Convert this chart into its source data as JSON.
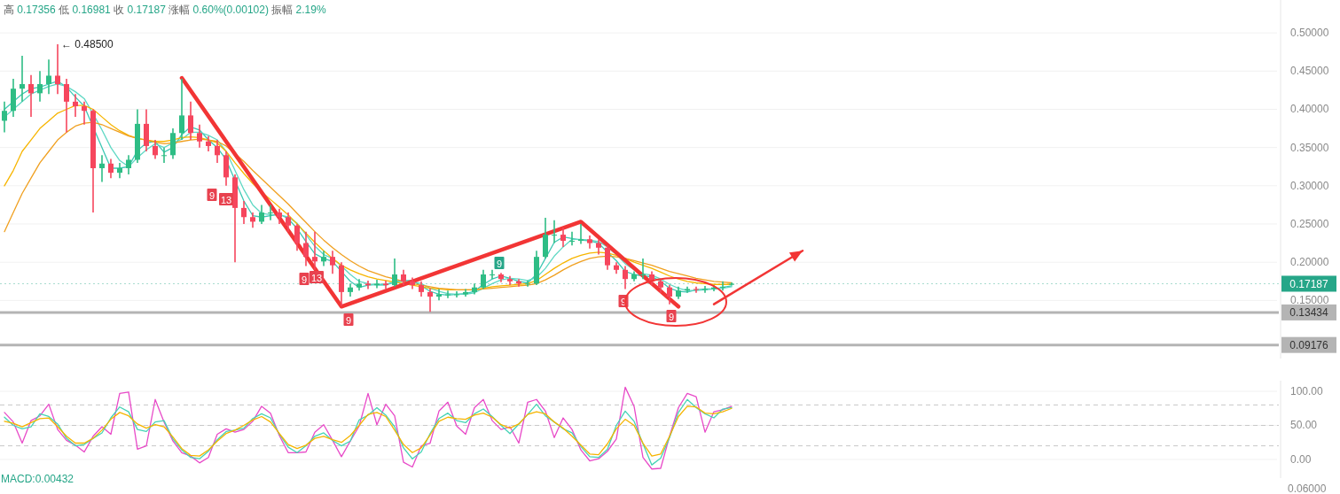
{
  "chart_data": [
    {
      "type": "candlestick",
      "title": "高 0.17356 低 0.16981 收 0.17187 涨幅 0.60%(0.00102) 振幅 2.19%",
      "categories": [
        null,
        null,
        null,
        null,
        null,
        null,
        null,
        null,
        null,
        null,
        null,
        null,
        null,
        null,
        null,
        null,
        null,
        null,
        null,
        null,
        null,
        null,
        null,
        null,
        null,
        null,
        null,
        null,
        null,
        null,
        null,
        null,
        null,
        null,
        null,
        null,
        null,
        null,
        null,
        null,
        null,
        null,
        null,
        null,
        null,
        null,
        null,
        null,
        null,
        null,
        null,
        null,
        null,
        null,
        null,
        null,
        null,
        null,
        null,
        null,
        null,
        null,
        null,
        null,
        null,
        null,
        null,
        null,
        null,
        null,
        null,
        null,
        null,
        null,
        null,
        null,
        null,
        null,
        null,
        null,
        null,
        null,
        null,
        null,
        null,
        null,
        null,
        null,
        null,
        null,
        null
      ],
      "ohlc": [
        [
          0.385,
          0.41,
          0.37,
          0.398
        ],
        [
          0.398,
          0.44,
          0.39,
          0.427
        ],
        [
          0.427,
          0.47,
          0.41,
          0.433
        ],
        [
          0.433,
          0.445,
          0.39,
          0.421
        ],
        [
          0.421,
          0.45,
          0.41,
          0.433
        ],
        [
          0.433,
          0.465,
          0.42,
          0.444
        ],
        [
          0.444,
          0.485,
          0.42,
          0.433
        ],
        [
          0.433,
          0.44,
          0.37,
          0.41
        ],
        [
          0.41,
          0.42,
          0.39,
          0.404
        ],
        [
          0.404,
          0.41,
          0.38,
          0.398
        ],
        [
          0.398,
          0.4,
          0.265,
          0.323
        ],
        [
          0.323,
          0.34,
          0.305,
          0.329
        ],
        [
          0.329,
          0.335,
          0.31,
          0.317
        ],
        [
          0.317,
          0.33,
          0.31,
          0.323
        ],
        [
          0.323,
          0.34,
          0.315,
          0.334
        ],
        [
          0.334,
          0.4,
          0.33,
          0.381
        ],
        [
          0.381,
          0.4,
          0.345,
          0.352
        ],
        [
          0.352,
          0.36,
          0.335,
          0.34
        ],
        [
          0.34,
          0.35,
          0.33,
          0.34
        ],
        [
          0.34,
          0.375,
          0.335,
          0.369
        ],
        [
          0.369,
          0.44,
          0.36,
          0.392
        ],
        [
          0.392,
          0.41,
          0.36,
          0.369
        ],
        [
          0.369,
          0.38,
          0.35,
          0.358
        ],
        [
          0.358,
          0.365,
          0.345,
          0.352
        ],
        [
          0.352,
          0.36,
          0.33,
          0.34
        ],
        [
          0.34,
          0.345,
          0.3,
          0.311
        ],
        [
          0.311,
          0.315,
          0.2,
          0.271
        ],
        [
          0.271,
          0.28,
          0.25,
          0.259
        ],
        [
          0.259,
          0.265,
          0.245,
          0.253
        ],
        [
          0.253,
          0.275,
          0.25,
          0.265
        ],
        [
          0.265,
          0.275,
          0.255,
          0.265
        ],
        [
          0.265,
          0.27,
          0.25,
          0.259
        ],
        [
          0.259,
          0.265,
          0.24,
          0.248
        ],
        [
          0.248,
          0.25,
          0.215,
          0.225
        ],
        [
          0.225,
          0.24,
          0.195,
          0.207
        ],
        [
          0.207,
          0.24,
          0.19,
          0.201
        ],
        [
          0.201,
          0.215,
          0.195,
          0.207
        ],
        [
          0.207,
          0.215,
          0.185,
          0.196
        ],
        [
          0.196,
          0.2,
          0.143,
          0.161
        ],
        [
          0.161,
          0.172,
          0.155,
          0.167
        ],
        [
          0.167,
          0.178,
          0.163,
          0.172
        ],
        [
          0.172,
          0.176,
          0.165,
          0.17
        ],
        [
          0.17,
          0.177,
          0.166,
          0.172
        ],
        [
          0.172,
          0.176,
          0.165,
          0.17
        ],
        [
          0.17,
          0.205,
          0.168,
          0.184
        ],
        [
          0.184,
          0.19,
          0.17,
          0.175
        ],
        [
          0.175,
          0.18,
          0.165,
          0.17
        ],
        [
          0.17,
          0.175,
          0.155,
          0.161
        ],
        [
          0.161,
          0.166,
          0.135,
          0.155
        ],
        [
          0.155,
          0.165,
          0.15,
          0.158
        ],
        [
          0.158,
          0.163,
          0.153,
          0.158
        ],
        [
          0.158,
          0.162,
          0.154,
          0.158
        ],
        [
          0.158,
          0.165,
          0.155,
          0.161
        ],
        [
          0.161,
          0.172,
          0.158,
          0.167
        ],
        [
          0.167,
          0.19,
          0.165,
          0.184
        ],
        [
          0.184,
          0.19,
          0.178,
          0.184
        ],
        [
          0.184,
          0.186,
          0.174,
          0.178
        ],
        [
          0.178,
          0.182,
          0.17,
          0.175
        ],
        [
          0.175,
          0.178,
          0.168,
          0.172
        ],
        [
          0.172,
          0.176,
          0.168,
          0.172
        ],
        [
          0.172,
          0.215,
          0.17,
          0.207
        ],
        [
          0.207,
          0.258,
          0.205,
          0.236
        ],
        [
          0.236,
          0.255,
          0.225,
          0.236
        ],
        [
          0.236,
          0.245,
          0.22,
          0.228
        ],
        [
          0.228,
          0.24,
          0.222,
          0.228
        ],
        [
          0.228,
          0.25,
          0.224,
          0.23
        ],
        [
          0.23,
          0.235,
          0.218,
          0.225
        ],
        [
          0.225,
          0.23,
          0.21,
          0.219
        ],
        [
          0.219,
          0.222,
          0.19,
          0.196
        ],
        [
          0.196,
          0.2,
          0.185,
          0.19
        ],
        [
          0.19,
          0.195,
          0.165,
          0.178
        ],
        [
          0.178,
          0.188,
          0.175,
          0.184
        ],
        [
          0.184,
          0.205,
          0.178,
          0.184
        ],
        [
          0.184,
          0.188,
          0.17,
          0.175
        ],
        [
          0.175,
          0.178,
          0.16,
          0.167
        ],
        [
          0.167,
          0.17,
          0.145,
          0.155
        ],
        [
          0.155,
          0.168,
          0.152,
          0.163
        ],
        [
          0.163,
          0.168,
          0.16,
          0.165
        ],
        [
          0.165,
          0.168,
          0.16,
          0.164
        ],
        [
          0.164,
          0.169,
          0.16,
          0.165
        ],
        [
          0.165,
          0.17,
          0.162,
          0.167
        ],
        [
          0.167,
          0.175,
          0.163,
          0.168
        ],
        [
          0.1705,
          0.17356,
          0.16981,
          0.17187
        ],
        null,
        null,
        null,
        null,
        null,
        null,
        null,
        null
      ],
      "series": [
        {
          "type": "line",
          "color": "#3cc8b4",
          "values": [
            0.4,
            0.41,
            0.42,
            0.427,
            0.429,
            0.433,
            0.437,
            0.429,
            0.416,
            0.404,
            null,
            0.35,
            0.323,
            0.323,
            0.325,
            0.346,
            0.356,
            0.358,
            0.344,
            0.35,
            0.367,
            0.377,
            0.373,
            0.36,
            0.35,
            0.334,
            0.307,
            0.28,
            0.261,
            0.259,
            0.261,
            0.263,
            0.257,
            0.244,
            0.227,
            0.211,
            0.205,
            0.201,
            0.188,
            0.175,
            0.167,
            0.17,
            0.171,
            0.171,
            0.175,
            0.176,
            0.176,
            0.169,
            0.162,
            0.158,
            0.157,
            0.158,
            0.159,
            0.162,
            0.171,
            0.178,
            0.182,
            0.179,
            0.175,
            0.173,
            0.184,
            0.205,
            0.226,
            0.233,
            0.231,
            0.229,
            0.228,
            0.225,
            0.213,
            0.202,
            0.188,
            0.184,
            0.182,
            0.181,
            0.175,
            0.166,
            0.162,
            0.161,
            0.164,
            0.165,
            0.165,
            0.167,
            0.169,
            null,
            null,
            null,
            null,
            null,
            null,
            null,
            null
          ]
        },
        {
          "type": "line",
          "color": "#5fd8c4",
          "values": [
            0.39,
            0.4,
            0.41,
            0.42,
            0.425,
            0.43,
            0.433,
            0.43,
            0.423,
            0.414,
            0.394,
            0.373,
            0.35,
            0.333,
            0.325,
            0.337,
            0.347,
            0.355,
            0.35,
            0.356,
            0.361,
            0.37,
            0.37,
            0.366,
            0.36,
            0.345,
            0.32,
            0.295,
            0.275,
            0.264,
            0.262,
            0.262,
            0.259,
            0.251,
            0.236,
            0.221,
            0.21,
            0.205,
            0.195,
            0.184,
            0.175,
            0.172,
            0.17,
            0.17,
            0.174,
            0.175,
            0.175,
            0.172,
            0.166,
            0.162,
            0.159,
            0.158,
            0.158,
            0.16,
            0.166,
            0.172,
            0.177,
            0.179,
            0.178,
            0.176,
            0.18,
            0.192,
            0.208,
            0.22,
            0.23,
            0.23,
            0.229,
            0.227,
            0.22,
            0.21,
            0.198,
            0.19,
            0.185,
            0.183,
            0.178,
            0.171,
            0.166,
            0.163,
            0.163,
            0.164,
            0.165,
            0.166,
            0.168,
            null,
            null,
            null,
            null,
            null,
            null,
            null,
            null
          ]
        },
        {
          "type": "line",
          "color": "#f7b500",
          "values": [
            0.3,
            0.32,
            0.345,
            0.36,
            0.375,
            0.385,
            0.395,
            0.4,
            0.405,
            0.405,
            0.4,
            0.39,
            0.38,
            0.372,
            0.366,
            0.362,
            0.36,
            0.358,
            0.358,
            0.36,
            0.363,
            0.364,
            0.363,
            0.36,
            0.356,
            0.345,
            0.33,
            0.316,
            0.303,
            0.292,
            0.282,
            0.272,
            0.262,
            0.25,
            0.238,
            0.226,
            0.215,
            0.205,
            0.196,
            0.19,
            0.185,
            0.181,
            0.178,
            0.176,
            0.174,
            0.172,
            0.17,
            0.168,
            0.166,
            0.165,
            0.164,
            0.164,
            0.164,
            0.164,
            0.166,
            0.168,
            0.169,
            0.17,
            0.171,
            0.172,
            0.176,
            0.184,
            0.192,
            0.199,
            0.205,
            0.209,
            0.212,
            0.213,
            0.212,
            0.209,
            0.205,
            0.2,
            0.196,
            0.192,
            0.187,
            0.182,
            0.178,
            0.175,
            0.173,
            0.172,
            0.171,
            0.171,
            0.171,
            null,
            null,
            null,
            null,
            null,
            null,
            null,
            null
          ]
        },
        {
          "type": "line",
          "color": "#f0a020",
          "values": [
            0.24,
            0.265,
            0.29,
            0.31,
            0.33,
            0.345,
            0.36,
            0.37,
            0.378,
            0.382,
            0.383,
            0.38,
            0.375,
            0.37,
            0.365,
            0.362,
            0.36,
            0.357,
            0.355,
            0.356,
            0.358,
            0.36,
            0.361,
            0.36,
            0.358,
            0.352,
            0.342,
            0.332,
            0.32,
            0.309,
            0.298,
            0.287,
            0.276,
            0.264,
            0.252,
            0.24,
            0.229,
            0.219,
            0.21,
            0.202,
            0.195,
            0.189,
            0.185,
            0.181,
            0.178,
            0.175,
            0.172,
            0.17,
            0.168,
            0.166,
            0.165,
            0.164,
            0.164,
            0.164,
            0.165,
            0.166,
            0.167,
            0.168,
            0.169,
            0.17,
            0.172,
            0.177,
            0.183,
            0.19,
            0.196,
            0.201,
            0.205,
            0.207,
            0.208,
            0.207,
            0.205,
            0.202,
            0.199,
            0.196,
            0.192,
            0.188,
            0.185,
            0.182,
            0.179,
            0.177,
            0.175,
            0.174,
            0.173,
            null,
            null,
            null,
            null,
            null,
            null,
            null,
            null
          ]
        },
        {
          "type": "line",
          "color": "#f23535",
          "values": [
            null,
            null,
            null,
            null,
            null,
            null,
            null,
            null,
            null,
            null,
            null,
            null,
            null,
            null,
            null,
            null,
            null,
            null,
            null,
            null,
            0.441,
            null,
            null,
            null,
            null,
            null,
            null,
            null,
            null,
            null,
            null,
            null,
            null,
            null,
            null,
            null,
            null,
            null,
            0.142,
            null,
            null,
            null,
            null,
            null,
            null,
            null,
            null,
            null,
            null,
            null,
            null,
            null,
            null,
            null,
            null,
            null,
            null,
            null,
            null,
            null,
            null,
            null,
            null,
            null,
            null,
            0.253,
            null,
            null,
            null,
            null,
            null,
            null,
            null,
            null,
            null,
            null,
            0.142,
            null,
            null,
            null,
            null,
            null,
            null,
            null,
            null,
            null,
            null,
            null,
            null,
            null,
            null
          ]
        },
        {
          "type": "line",
          "color": "#f23535",
          "values": [
            null,
            null,
            null,
            null,
            null,
            null,
            null,
            null,
            null,
            null,
            null,
            null,
            null,
            null,
            null,
            null,
            null,
            null,
            null,
            null,
            null,
            null,
            null,
            null,
            null,
            null,
            null,
            null,
            null,
            null,
            null,
            null,
            null,
            null,
            null,
            null,
            null,
            null,
            null,
            null,
            null,
            null,
            null,
            null,
            null,
            null,
            null,
            null,
            null,
            null,
            null,
            null,
            null,
            null,
            null,
            null,
            null,
            null,
            null,
            null,
            null,
            null,
            null,
            null,
            null,
            null,
            null,
            null,
            null,
            null,
            null,
            null,
            null,
            null,
            null,
            null,
            null,
            null,
            null,
            null,
            0.145,
            null,
            null,
            null,
            null,
            null,
            null,
            null,
            null,
            null,
            0.215
          ]
        }
      ],
      "ylim": [
        0.074,
        0.543
      ],
      "yticks": [
        {
          "value": 0.15,
          "label": "0.15000"
        },
        {
          "value": 0.2,
          "label": "0.20000"
        },
        {
          "value": 0.25,
          "label": "0.25000"
        },
        {
          "value": 0.3,
          "label": "0.30000"
        },
        {
          "value": 0.35,
          "label": "0.35000"
        },
        {
          "value": 0.4,
          "label": "0.40000"
        },
        {
          "value": 0.45,
          "label": "0.45000"
        },
        {
          "value": 0.5,
          "label": "0.50000"
        }
      ],
      "ref_lines": [
        {
          "axis": "y",
          "value": 0.17187,
          "label": "0.17187",
          "color": "#26a688",
          "line_style": "dotted"
        },
        {
          "axis": "y",
          "value": 0.13434,
          "label": "0.13434",
          "color": "#b4b4b4"
        },
        {
          "axis": "y",
          "value": 0.09176,
          "label": "0.09176",
          "color": "#b4b4b4"
        }
      ],
      "annotations": [
        "← 0.48500",
        "9",
        "13",
        "9",
        "13",
        "9",
        "9",
        "9",
        "9"
      ],
      "grid": "y",
      "tick_labels": "y"
    },
    {
      "type": "line",
      "categories": [
        null,
        null,
        null,
        null,
        null,
        null,
        null,
        null,
        null,
        null,
        null,
        null,
        null,
        null,
        null,
        null,
        null,
        null,
        null,
        null,
        null,
        null,
        null,
        null,
        null,
        null,
        null,
        null,
        null,
        null,
        null,
        null,
        null,
        null,
        null,
        null,
        null,
        null,
        null,
        null,
        null,
        null,
        null,
        null,
        null,
        null,
        null,
        null,
        null,
        null,
        null,
        null,
        null,
        null,
        null,
        null,
        null,
        null,
        null,
        null,
        null,
        null,
        null,
        null,
        null,
        null,
        null,
        null,
        null,
        null,
        null,
        null,
        null,
        null,
        null,
        null,
        null,
        null,
        null,
        null,
        null,
        null,
        null
      ],
      "series": [
        {
          "color": "#e84ac8",
          "values": [
            69,
            55,
            24,
            57,
            64,
            81,
            44,
            28,
            21,
            11,
            34,
            48,
            37,
            97,
            99,
            15,
            20,
            88,
            55,
            27,
            10,
            5,
            -5,
            3,
            37,
            45,
            40,
            44,
            56,
            78,
            68,
            35,
            10,
            10,
            11,
            40,
            51,
            28,
            4,
            27,
            49,
            97,
            51,
            81,
            64,
            -4,
            -11,
            20,
            24,
            71,
            84,
            49,
            37,
            76,
            88,
            57,
            44,
            48,
            24,
            84,
            88,
            71,
            32,
            61,
            44,
            14,
            -2,
            1,
            12,
            30,
            106,
            78,
            3,
            -14,
            -13,
            34,
            76,
            97,
            92,
            40,
            70,
            73,
            78
          ]
        },
        {
          "color": "#45d3b5",
          "values": [
            62,
            50,
            45,
            48,
            67,
            63,
            52,
            31,
            20,
            22,
            31,
            39,
            61,
            77,
            70,
            44,
            41,
            55,
            57,
            30,
            14,
            3,
            1,
            12,
            29,
            41,
            43,
            46,
            60,
            67,
            61,
            37,
            18,
            10,
            20,
            34,
            39,
            28,
            20,
            27,
            58,
            65,
            76,
            65,
            48,
            17,
            1,
            11,
            38,
            60,
            68,
            57,
            54,
            67,
            74,
            63,
            50,
            38,
            52,
            66,
            81,
            64,
            55,
            45,
            39,
            19,
            4,
            3,
            15,
            50,
            71,
            56,
            23,
            -8,
            2,
            32,
            69,
            88,
            76,
            67,
            61,
            74,
            76
          ]
        },
        {
          "color": "#f5b400",
          "values": [
            56,
            53,
            48,
            54,
            60,
            61,
            48,
            34,
            24,
            24,
            31,
            43,
            59,
            69,
            64,
            52,
            46,
            51,
            48,
            33,
            16,
            6,
            5,
            14,
            27,
            38,
            43,
            50,
            58,
            63,
            55,
            38,
            22,
            16,
            21,
            31,
            34,
            29,
            25,
            35,
            50,
            66,
            69,
            63,
            43,
            22,
            10,
            17,
            36,
            56,
            62,
            60,
            59,
            65,
            68,
            62,
            51,
            46,
            52,
            66,
            70,
            67,
            55,
            46,
            34,
            21,
            8,
            7,
            23,
            45,
            59,
            50,
            24,
            5,
            8,
            34,
            63,
            78,
            77,
            68,
            67,
            70,
            75
          ]
        }
      ],
      "ylim": [
        -27.3,
        115.6
      ],
      "yticks": [
        {
          "value": 0,
          "label": "0.00"
        },
        {
          "value": 50,
          "label": "50.00"
        },
        {
          "value": 100,
          "label": "100.00"
        }
      ],
      "ref_lines": [
        {
          "axis": "y",
          "value": 20,
          "color": "#c8c8c8",
          "line_style": "dashed"
        },
        {
          "axis": "y",
          "value": 50,
          "color": "#c8c8c8",
          "line_style": "dashed"
        },
        {
          "axis": "y",
          "value": 80,
          "color": "#c8c8c8",
          "line_style": "dashed"
        }
      ],
      "grid": "y",
      "tick_labels": "y"
    },
    {
      "type": "other",
      "annotations": [
        "MACD:0.00432",
        "0.06000"
      ]
    }
  ]
}
